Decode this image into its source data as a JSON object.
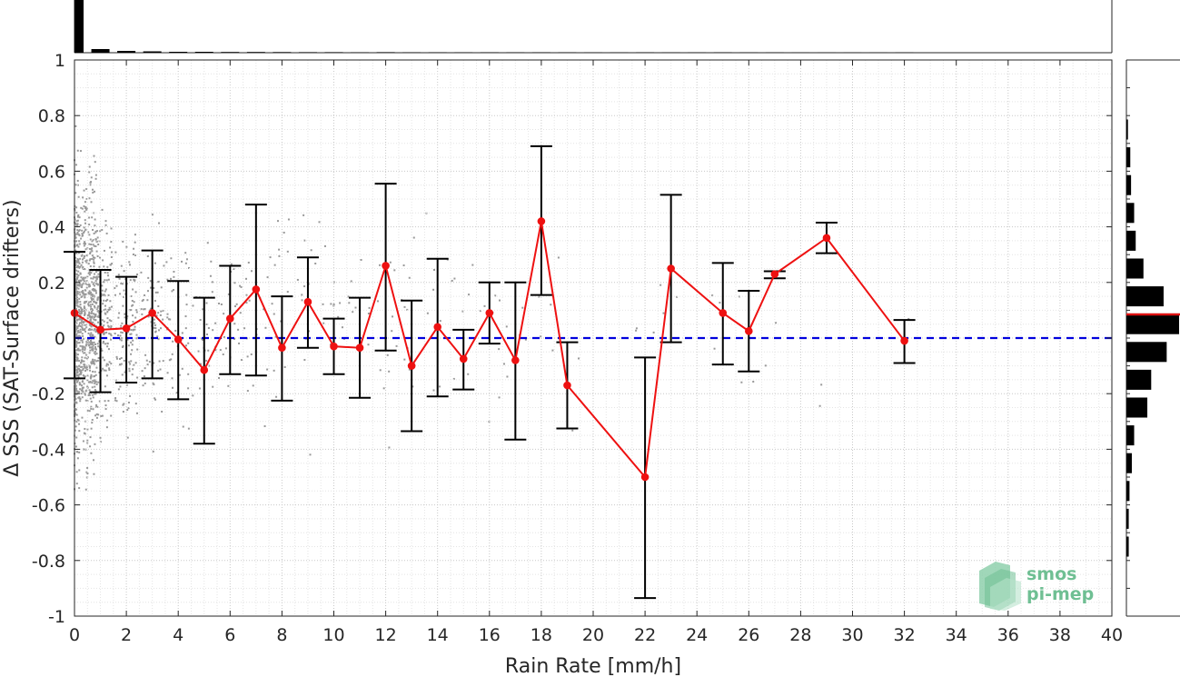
{
  "chart_data": {
    "type": "line",
    "xlabel": "Rain Rate [mm/h]",
    "ylabel": "Δ SSS (SAT-Surface drifters)",
    "xlim": [
      0,
      40
    ],
    "ylim": [
      -1,
      1
    ],
    "x_ticks": [
      "0",
      "2",
      "4",
      "6",
      "8",
      "10",
      "12",
      "14",
      "16",
      "18",
      "20",
      "22",
      "24",
      "26",
      "28",
      "30",
      "32",
      "34",
      "36",
      "38",
      "40"
    ],
    "y_ticks": [
      "-1",
      "-0.8",
      "-0.6",
      "-0.4",
      "-0.2",
      "0",
      "0.2",
      "0.4",
      "0.6",
      "0.8",
      "1"
    ],
    "grid": true,
    "reference_line": {
      "y": 0,
      "style": "dashed",
      "color": "#0000dd"
    },
    "series": [
      {
        "color": "#ee1111",
        "x": [
          0,
          1,
          2,
          3,
          4,
          5,
          6,
          7,
          8,
          9,
          10,
          11,
          12,
          13,
          14,
          15,
          16,
          17,
          18,
          19,
          22,
          23,
          25,
          26,
          27,
          29,
          32
        ],
        "y": [
          0.09,
          0.03,
          0.035,
          0.09,
          -0.005,
          -0.115,
          0.07,
          0.175,
          -0.035,
          0.13,
          -0.03,
          -0.035,
          0.26,
          -0.1,
          0.04,
          -0.075,
          0.09,
          -0.08,
          0.42,
          -0.17,
          -0.5,
          0.25,
          0.09,
          0.025,
          0.23,
          0.36,
          -0.01
        ],
        "err_low": [
          -0.145,
          -0.195,
          -0.16,
          -0.145,
          -0.22,
          -0.38,
          -0.13,
          -0.135,
          -0.225,
          -0.035,
          -0.13,
          -0.215,
          -0.045,
          -0.335,
          -0.21,
          -0.185,
          -0.02,
          -0.365,
          0.155,
          -0.325,
          -0.935,
          -0.015,
          -0.095,
          -0.12,
          0.215,
          0.305,
          -0.09
        ],
        "err_high": [
          0.31,
          0.245,
          0.22,
          0.315,
          0.205,
          0.145,
          0.26,
          0.48,
          0.15,
          0.29,
          0.07,
          0.145,
          0.555,
          0.135,
          0.285,
          0.03,
          0.2,
          0.2,
          0.69,
          -0.015,
          -0.07,
          0.515,
          0.27,
          0.17,
          0.24,
          0.415,
          0.065
        ]
      }
    ],
    "scatter": {
      "color": "#999999"
    },
    "top_histogram": {
      "axis": "x",
      "bins": [
        0,
        1,
        2,
        3,
        4,
        5,
        6,
        7,
        8,
        9,
        10,
        11,
        12,
        13,
        14,
        15,
        16,
        17,
        18,
        19,
        20,
        21,
        22,
        23,
        24,
        25,
        26,
        27,
        28,
        29,
        30,
        31,
        32
      ],
      "counts": [
        58,
        4,
        2,
        1.5,
        1,
        1,
        0.8,
        0.8,
        0.7,
        0.6,
        0.6,
        0.5,
        0.6,
        0.5,
        0.5,
        0.4,
        0.5,
        0.4,
        0.5,
        0.4,
        0.3,
        0.3,
        0.4,
        0.3,
        0.3,
        0.4,
        0.3,
        0.3,
        0.2,
        0.2,
        0.2,
        0.2,
        0.3
      ]
    },
    "right_histogram": {
      "axis": "y",
      "bin_centers": [
        0.75,
        0.65,
        0.55,
        0.45,
        0.35,
        0.25,
        0.15,
        0.05,
        -0.05,
        -0.15,
        -0.25,
        -0.35,
        -0.45,
        -0.55,
        -0.65,
        -0.75
      ],
      "counts": [
        2,
        5,
        6,
        10,
        12,
        22,
        48,
        68,
        52,
        32,
        27,
        10,
        7,
        4,
        3,
        3
      ],
      "mean_line": {
        "y": 0.085,
        "color": "#dd1111"
      }
    },
    "logo": {
      "line1": "smos",
      "line2": "pi-mep",
      "color": "#6fbf93"
    }
  }
}
